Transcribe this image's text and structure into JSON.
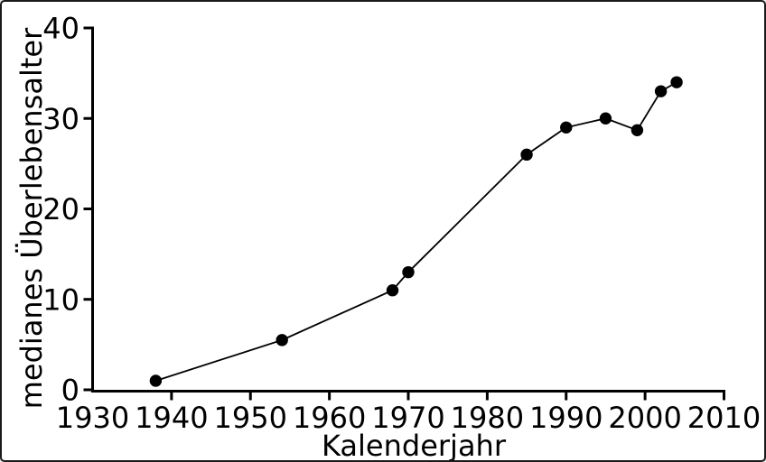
{
  "chart_data": {
    "type": "line",
    "title": "",
    "xlabel": "Kalenderjahr",
    "ylabel": "medianes Überlebensalter",
    "x": [
      1938,
      1954,
      1968,
      1970,
      1985,
      1990,
      1995,
      1999,
      2002,
      2004
    ],
    "y": [
      1,
      5.5,
      11,
      13,
      26,
      29,
      30,
      28.7,
      33,
      34
    ],
    "series": [
      {
        "name": "medianes Überlebensalter",
        "x": [
          1938,
          1954,
          1968,
          1970,
          1985,
          1990,
          1995,
          1999,
          2002,
          2004
        ],
        "values": [
          1,
          5.5,
          11,
          13,
          26,
          29,
          30,
          28.7,
          33,
          34
        ]
      }
    ],
    "xlim": [
      1930,
      2010
    ],
    "ylim": [
      0,
      40
    ],
    "x_ticks": [
      1930,
      1940,
      1950,
      1960,
      1970,
      1980,
      1990,
      2000,
      2010
    ],
    "y_ticks": [
      0,
      10,
      20,
      30,
      40
    ],
    "grid": false,
    "legend_position": "none",
    "marker": "filled-circle",
    "line_color": "#000000",
    "marker_color": "#000000",
    "axis_color": "#000000",
    "background_color": "#ffffff",
    "frame_border_color": "#1a1a1a"
  }
}
